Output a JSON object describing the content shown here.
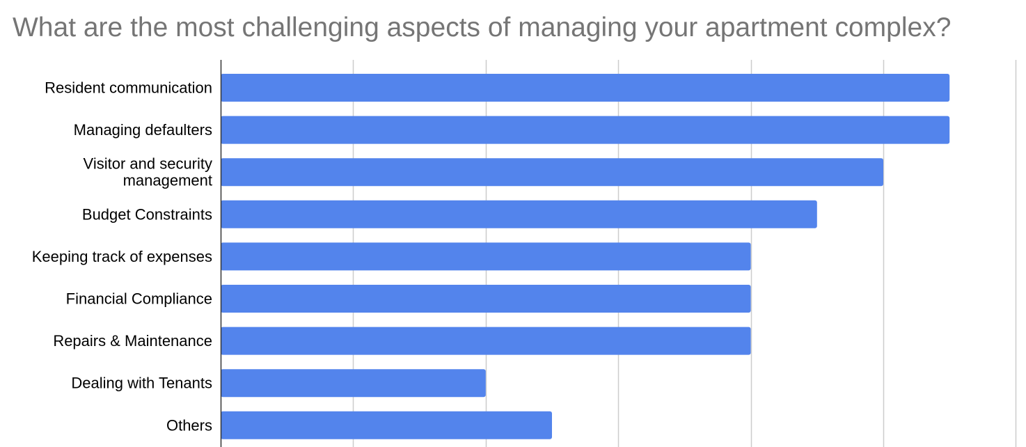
{
  "chart_data": {
    "type": "bar",
    "orientation": "horizontal",
    "title": "What are the most challenging aspects of managing your apartment complex?",
    "xlabel": "",
    "ylabel": "",
    "categories": [
      "Resident communication",
      "Managing defaulters",
      "Visitor and security management",
      "Budget Constraints",
      "Keeping track of expenses",
      "Financial Compliance",
      "Repairs & Maintenance",
      "Dealing with Tenants",
      "Others"
    ],
    "category_lines": [
      [
        "Resident communication"
      ],
      [
        "Managing defaulters"
      ],
      [
        "Visitor and security",
        "management"
      ],
      [
        "Budget Constraints"
      ],
      [
        "Keeping track of expenses"
      ],
      [
        "Financial Compliance"
      ],
      [
        "Repairs & Maintenance"
      ],
      [
        "Dealing with Tenants"
      ],
      [
        "Others"
      ]
    ],
    "values": [
      11,
      11,
      10,
      9,
      8,
      8,
      8,
      4,
      5
    ],
    "xlim": [
      0,
      12
    ],
    "x_gridlines": [
      2,
      4,
      6,
      8,
      10,
      12
    ],
    "tick_labels_visible": false,
    "grid": true,
    "legend": "none",
    "bar_color": "#5384ec",
    "grid_color": "#cccccc",
    "axis_color": "#333333"
  }
}
